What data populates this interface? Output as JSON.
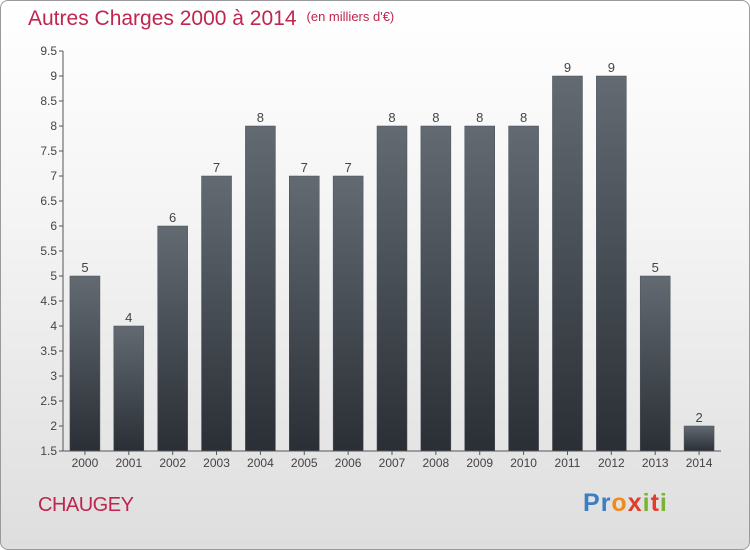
{
  "header": {
    "title": "Autres Charges 2000 à 2014",
    "unit": "(en milliers d'€)"
  },
  "commune": "CHAUGEY",
  "logo": {
    "text": "Proxiti",
    "letters": [
      "P",
      "r",
      "o",
      "x",
      "i",
      "t",
      "i"
    ],
    "colors": [
      "#3a7fc1",
      "#3a7fc1",
      "#f08a1c",
      "#e23c2f",
      "#79b431",
      "#e23c2f",
      "#79b431"
    ]
  },
  "colors": {
    "bar_top": "#636a72",
    "bar_bottom": "#2a2f35",
    "title": "#c0254f"
  },
  "chart_data": {
    "type": "bar",
    "title": "Autres Charges 2000 à 2014",
    "subtitle": "(en milliers d'€)",
    "categories": [
      "2000",
      "2001",
      "2002",
      "2003",
      "2004",
      "2005",
      "2006",
      "2007",
      "2008",
      "2009",
      "2010",
      "2011",
      "2012",
      "2013",
      "2014"
    ],
    "values": [
      5,
      4,
      6,
      7,
      8,
      7,
      7,
      8,
      8,
      8,
      8,
      9,
      9,
      5,
      2
    ],
    "data_labels": [
      "5",
      "4",
      "6",
      "7",
      "8",
      "7",
      "7",
      "8",
      "8",
      "8",
      "8",
      "9",
      "9",
      "5",
      "2"
    ],
    "yticks": [
      "1.5",
      "2",
      "2.5",
      "3",
      "3.5",
      "4",
      "4.5",
      "5",
      "5.5",
      "6",
      "6.5",
      "7",
      "7.5",
      "8",
      "8.5",
      "9",
      "9.5"
    ],
    "ylim": [
      1.5,
      9.5
    ],
    "xlabel": "",
    "ylabel": "",
    "grid": false
  }
}
